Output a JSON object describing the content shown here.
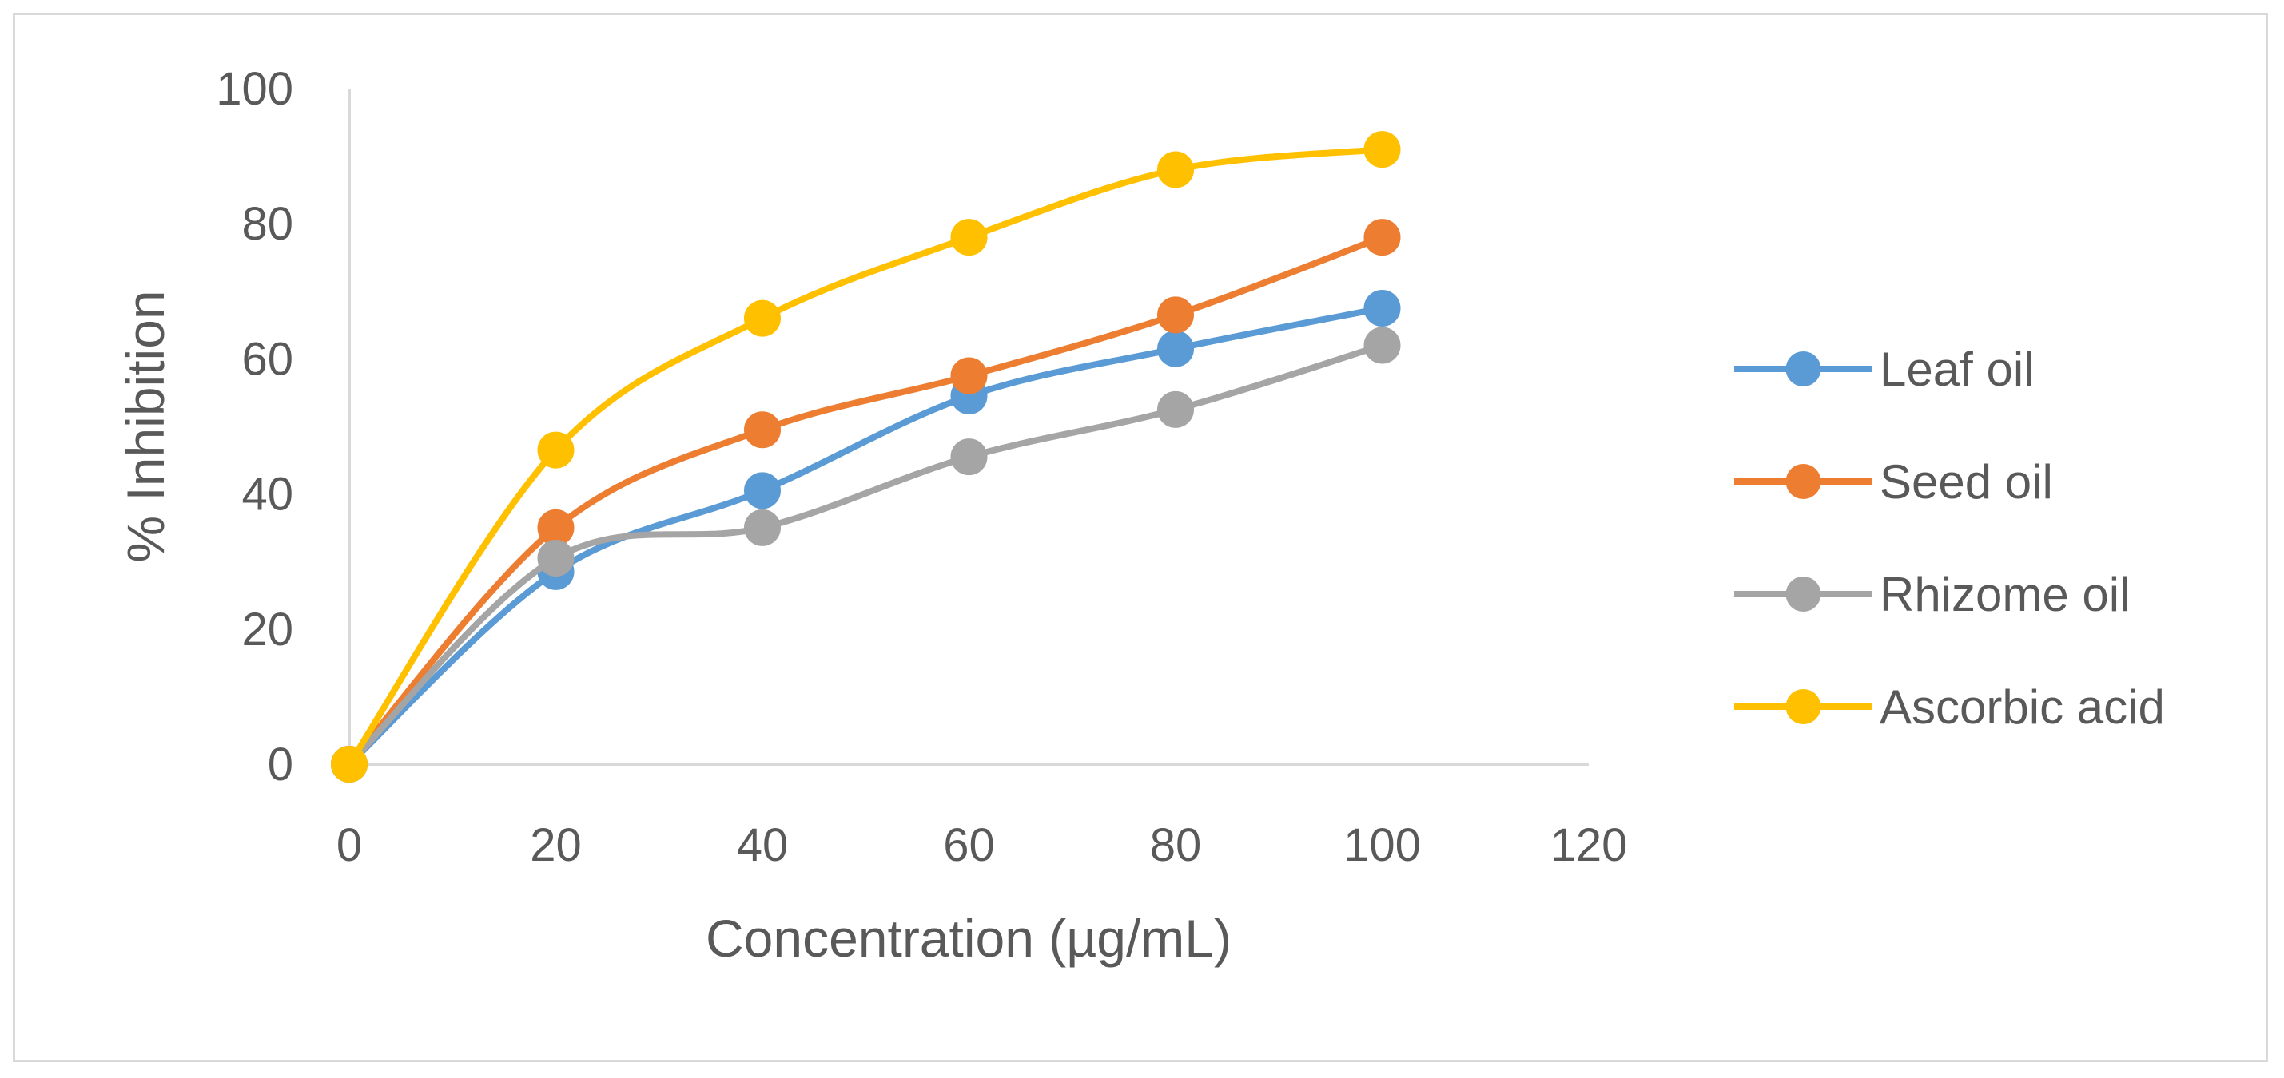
{
  "chart_data": {
    "type": "line",
    "title": "",
    "xlabel": "Concentration (µg/mL)",
    "ylabel": "% Inhibition",
    "xlim": [
      0,
      120
    ],
    "ylim": [
      0,
      100
    ],
    "x_ticks": [
      0,
      20,
      40,
      60,
      80,
      100,
      120
    ],
    "y_ticks": [
      0,
      20,
      40,
      60,
      80,
      100
    ],
    "grid": false,
    "legend_position": "right",
    "x": [
      0,
      20,
      40,
      60,
      80,
      100
    ],
    "series": [
      {
        "name": "Leaf oil",
        "color": "#5b9bd5",
        "values": [
          0,
          28.5,
          40.5,
          54.5,
          61.5,
          67.5
        ]
      },
      {
        "name": "Seed oil",
        "color": "#ed7d31",
        "values": [
          0,
          35,
          49.5,
          57.5,
          66.5,
          78
        ]
      },
      {
        "name": "Rhizome oil",
        "color": "#a5a5a5",
        "values": [
          0,
          30.5,
          35,
          45.5,
          52.5,
          62
        ]
      },
      {
        "name": "Ascorbic acid",
        "color": "#ffc000",
        "values": [
          0,
          46.5,
          66,
          78,
          88,
          91
        ]
      }
    ]
  }
}
